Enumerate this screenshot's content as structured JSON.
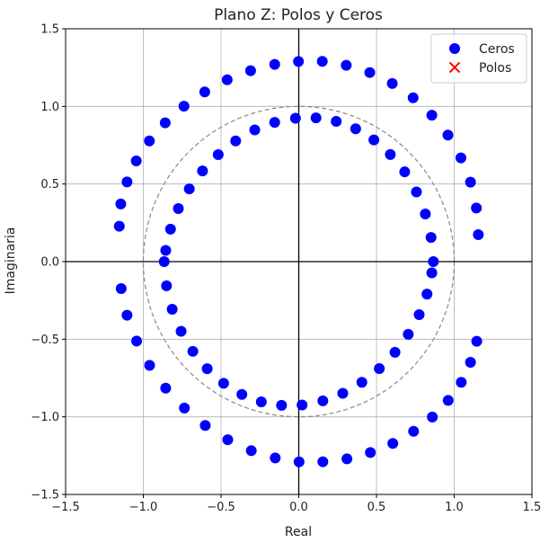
{
  "chart_data": {
    "type": "scatter",
    "title": "Plano Z: Polos y Ceros",
    "xlabel": "Real",
    "ylabel": "Imaginaria",
    "xlim": [
      -1.5,
      1.5
    ],
    "ylim": [
      -1.5,
      1.5
    ],
    "xticks": [
      "−1.5",
      "−1.0",
      "−0.5",
      "0.0",
      "0.5",
      "1.0",
      "1.5"
    ],
    "yticks": [
      "−1.5",
      "−1.0",
      "−0.5",
      "0.0",
      "0.5",
      "1.0",
      "1.5"
    ],
    "grid": true,
    "legend_position": "top-right",
    "unit_circle": {
      "radius": 1.0,
      "style": "dashed",
      "color": "#888888"
    },
    "series": [
      {
        "name": "Ceros",
        "marker": "circle",
        "color": "#0000ff",
        "x": [
          1.155,
          1.1424,
          1.1047,
          1.0431,
          0.9595,
          0.8561,
          0.7357,
          0.6015,
          0.4568,
          0.3055,
          0.1513,
          -0.0019,
          -0.1549,
          -0.3099,
          -0.4605,
          -0.6049,
          -0.7386,
          -0.8592,
          -0.9611,
          -1.0454,
          -1.1048,
          -1.1449,
          -1.1545,
          -1.1424,
          -1.1047,
          -1.0431,
          -0.9595,
          -0.8561,
          -0.7357,
          -0.6015,
          -0.4568,
          -0.3055,
          -0.1513,
          0.0019,
          0.1549,
          0.3099,
          0.4605,
          0.6049,
          0.7386,
          0.8592,
          0.9611,
          1.0454,
          1.1048,
          1.1449,
          0.8658,
          0.8509,
          0.8144,
          0.7569,
          0.6814,
          0.589,
          0.4833,
          0.3661,
          0.2409,
          0.1109,
          -0.0212,
          -0.1549,
          -0.2831,
          -0.4059,
          -0.5181,
          -0.6191,
          -0.7043,
          -0.7745,
          -0.8251,
          -0.8558,
          -0.8658,
          -0.8509,
          -0.8144,
          -0.7569,
          -0.6814,
          -0.589,
          -0.4833,
          -0.3661,
          -0.2409,
          -0.1109,
          0.0212,
          0.1549,
          0.2831,
          0.4059,
          0.5181,
          0.6191,
          0.7043,
          0.7745,
          0.8251,
          0.8558
        ],
        "y": [
          0.1737,
          0.3454,
          0.5118,
          0.6685,
          0.8149,
          0.9432,
          1.0558,
          1.1476,
          1.218,
          1.2649,
          1.2899,
          1.2896,
          1.2705,
          1.2298,
          1.1716,
          1.0934,
          1.0014,
          0.8938,
          0.7772,
          0.6487,
          0.5132,
          0.3713,
          0.2282,
          -0.1737,
          -0.3454,
          -0.5118,
          -0.6685,
          -0.8149,
          -0.9432,
          -1.0558,
          -1.1476,
          -1.218,
          -1.2649,
          -1.2899,
          -1.2896,
          -1.2705,
          -1.2298,
          -1.1716,
          -1.0934,
          -1.0014,
          -0.8938,
          -0.7772,
          -0.6487,
          -0.5132,
          0.0,
          0.1559,
          0.3069,
          0.449,
          0.5781,
          0.6898,
          0.7841,
          0.8554,
          0.9037,
          0.9259,
          0.9239,
          0.8972,
          0.8484,
          0.7775,
          0.6894,
          0.5844,
          0.4682,
          0.3414,
          0.2092,
          0.0725,
          -0.0,
          -0.1559,
          -0.3069,
          -0.449,
          -0.5781,
          -0.6898,
          -0.7841,
          -0.8554,
          -0.9037,
          -0.9259,
          -0.9239,
          -0.8972,
          -0.8484,
          -0.7775,
          -0.6894,
          -0.5844,
          -0.4682,
          -0.3414,
          -0.2092,
          -0.0725
        ]
      },
      {
        "name": "Polos",
        "marker": "x",
        "color": "#ff0000",
        "x": [],
        "y": []
      }
    ]
  }
}
